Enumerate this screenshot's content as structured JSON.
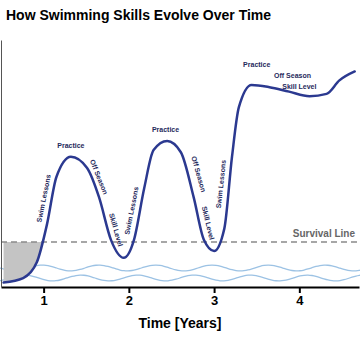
{
  "chart_data": {
    "type": "line",
    "title": "How Swimming Skills Evolve Over Time",
    "x_label": "Time [Years]",
    "x": [
      0.53,
      0.76,
      0.92,
      1.04,
      1.15,
      1.32,
      1.51,
      1.65,
      1.79,
      1.94,
      2.06,
      2.18,
      2.29,
      2.45,
      2.61,
      2.76,
      2.88,
      3,
      3.12,
      3.21,
      3.29,
      3.44,
      3.65,
      3.88,
      4.12,
      4.32,
      4.47,
      4.65
    ],
    "values": [
      2,
      4,
      11,
      28,
      49,
      58,
      53,
      40,
      21,
      13,
      21,
      44,
      61,
      65,
      60,
      40,
      21,
      16,
      26,
      58,
      80,
      90,
      89,
      87,
      85,
      86,
      92,
      96
    ],
    "color": "#2b3990",
    "xlim": [
      0.5,
      4.7
    ],
    "xticks": [
      1,
      2,
      3,
      4
    ],
    "ylim": [
      0,
      110
    ],
    "yticks": [],
    "tick_labels": "x",
    "grid": false,
    "hline": {
      "y": 20,
      "text": "Survival Line",
      "line_style": "dashed"
    },
    "annotations": [
      {
        "text": "Swim Lessons",
        "x": 1.0,
        "y": 39.5
      },
      {
        "text": "Practice",
        "x": 1.32,
        "y": 62.8
      },
      {
        "text": "Off Season",
        "x": 1.65,
        "y": 49
      },
      {
        "text": "Skill Level",
        "x": 1.85,
        "y": 25.5
      },
      {
        "text": "Swim Lessons",
        "x": 2.03,
        "y": 34
      },
      {
        "text": "Practice",
        "x": 2.43,
        "y": 70
      },
      {
        "text": "Off Season",
        "x": 2.82,
        "y": 50.3
      },
      {
        "text": "Skill Level",
        "x": 2.93,
        "y": 28.5
      },
      {
        "text": "Swim Lessons",
        "x": 3.08,
        "y": 45.8
      },
      {
        "text": "Practice",
        "x": 3.5,
        "y": 99
      },
      {
        "text": "Off Season",
        "x": 3.92,
        "y": 94
      },
      {
        "text": "Skill Level",
        "x": 4.0,
        "y": 89.5
      }
    ]
  }
}
